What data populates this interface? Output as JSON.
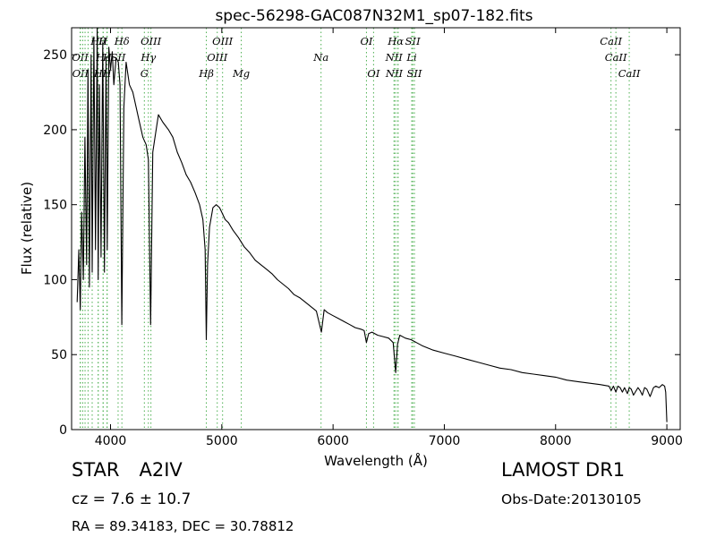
{
  "chart_data": {
    "type": "line",
    "title": "spec-56298-GAC087N32M1_sp07-182.fits",
    "xlabel": "Wavelength (Å)",
    "ylabel": "Flux (relative)",
    "xlim": [
      3650,
      9120
    ],
    "ylim": [
      0,
      268
    ],
    "xticks": [
      4000,
      5000,
      6000,
      7000,
      8000,
      9000
    ],
    "yticks": [
      0,
      50,
      100,
      150,
      200,
      250
    ],
    "grid": false,
    "series": [
      {
        "color": "#000000",
        "x": [
          3700,
          3715,
          3728,
          3740,
          3755,
          3770,
          3785,
          3797,
          3810,
          3825,
          3835,
          3850,
          3865,
          3880,
          3889,
          3900,
          3915,
          3930,
          3945,
          3960,
          3970,
          3985,
          4000,
          4015,
          4030,
          4050,
          4070,
          4085,
          4101,
          4120,
          4140,
          4170,
          4200,
          4230,
          4260,
          4290,
          4320,
          4340,
          4360,
          4380,
          4400,
          4430,
          4470,
          4520,
          4560,
          4600,
          4640,
          4680,
          4720,
          4760,
          4800,
          4830,
          4850,
          4861,
          4872,
          4890,
          4920,
          4950,
          4980,
          5000,
          5030,
          5060,
          5100,
          5150,
          5200,
          5250,
          5300,
          5350,
          5400,
          5450,
          5500,
          5550,
          5600,
          5650,
          5700,
          5750,
          5800,
          5850,
          5895,
          5920,
          5950,
          6000,
          6050,
          6100,
          6150,
          6200,
          6250,
          6280,
          6300,
          6320,
          6350,
          6400,
          6450,
          6500,
          6540,
          6563,
          6580,
          6600,
          6650,
          6700,
          6750,
          6800,
          6900,
          7000,
          7100,
          7200,
          7300,
          7400,
          7500,
          7600,
          7700,
          7800,
          7900,
          8000,
          8100,
          8200,
          8300,
          8400,
          8480,
          8500,
          8520,
          8542,
          8560,
          8580,
          8600,
          8620,
          8645,
          8662,
          8680,
          8700,
          8740,
          8760,
          8780,
          8800,
          8820,
          8850,
          8880,
          8900,
          8930,
          8960,
          8980,
          8990,
          9000
        ],
        "y": [
          85,
          120,
          80,
          145,
          100,
          195,
          110,
          240,
          95,
          250,
          105,
          262,
          120,
          268,
          100,
          230,
          115,
          258,
          105,
          248,
          120,
          255,
          240,
          252,
          230,
          248,
          245,
          230,
          70,
          215,
          245,
          230,
          225,
          215,
          205,
          195,
          190,
          180,
          70,
          185,
          195,
          210,
          205,
          200,
          195,
          185,
          178,
          170,
          165,
          158,
          150,
          140,
          120,
          60,
          110,
          135,
          148,
          150,
          148,
          145,
          140,
          138,
          133,
          128,
          122,
          118,
          113,
          110,
          107,
          104,
          100,
          97,
          94,
          90,
          88,
          85,
          82,
          79,
          65,
          80,
          78,
          76,
          74,
          72,
          70,
          68,
          67,
          66,
          58,
          64,
          65,
          63,
          62,
          61,
          58,
          38,
          57,
          63,
          61,
          60,
          58,
          56,
          53,
          51,
          49,
          47,
          45,
          43,
          41,
          40,
          38,
          37,
          36,
          35,
          33,
          32,
          31,
          30,
          29,
          26,
          29,
          25,
          29,
          28,
          25,
          28,
          24,
          28,
          27,
          23,
          28,
          26,
          23,
          28,
          27,
          22,
          28,
          29,
          28,
          30,
          29,
          25,
          5
        ]
      }
    ],
    "line_markers": [
      {
        "x": 3727,
        "row": 2,
        "label": "OII"
      },
      {
        "x": 3729,
        "row": 3,
        "label": "OII"
      },
      {
        "x": 3750,
        "row": 1,
        "label": ""
      },
      {
        "x": 3771,
        "row": 1,
        "label": ""
      },
      {
        "x": 3798,
        "row": 1,
        "label": ""
      },
      {
        "x": 3835,
        "row": 1,
        "label": ""
      },
      {
        "x": 3889,
        "row": 1,
        "label": "Hθ"
      },
      {
        "x": 3889,
        "row": 3,
        "label": "H"
      },
      {
        "x": 3933,
        "row": 1,
        "label": "H"
      },
      {
        "x": 3934,
        "row": 2,
        "label": "Hϵ"
      },
      {
        "x": 3968,
        "row": 3,
        "label": "H"
      },
      {
        "x": 3970,
        "row": 2,
        "label": "H"
      },
      {
        "x": 4068,
        "row": 2,
        "label": "SII"
      },
      {
        "x": 4102,
        "row": 1,
        "label": "Hδ"
      },
      {
        "x": 4304,
        "row": 3,
        "label": "G"
      },
      {
        "x": 4340,
        "row": 2,
        "label": "Hγ"
      },
      {
        "x": 4363,
        "row": 1,
        "label": "OIII"
      },
      {
        "x": 4861,
        "row": 3,
        "label": "Hβ"
      },
      {
        "x": 4959,
        "row": 2,
        "label": "OIII"
      },
      {
        "x": 5007,
        "row": 1,
        "label": "OIII"
      },
      {
        "x": 5175,
        "row": 3,
        "label": "Mg"
      },
      {
        "x": 5892,
        "row": 2,
        "label": "Na"
      },
      {
        "x": 6300,
        "row": 1,
        "label": "OI"
      },
      {
        "x": 6364,
        "row": 3,
        "label": "OI"
      },
      {
        "x": 6548,
        "row": 2,
        "label": "NII"
      },
      {
        "x": 6550,
        "row": 3,
        "label": "NII"
      },
      {
        "x": 6563,
        "row": 1,
        "label": "Hα"
      },
      {
        "x": 6583,
        "row": 3,
        "label": ""
      },
      {
        "x": 6584,
        "row": 2,
        "label": ""
      },
      {
        "x": 6707,
        "row": 2,
        "label": "Li"
      },
      {
        "x": 6716,
        "row": 1,
        "label": "SII"
      },
      {
        "x": 6731,
        "row": 3,
        "label": "SII"
      },
      {
        "x": 8498,
        "row": 1,
        "label": "CaII"
      },
      {
        "x": 8542,
        "row": 2,
        "label": "CaII"
      },
      {
        "x": 8662,
        "row": 3,
        "label": "CaII"
      }
    ]
  },
  "info": {
    "object_type": "STAR",
    "subclass": "A2IV",
    "redshift": "cz = 7.6 ± 10.7",
    "radec": "RA = 89.34183, DEC = 30.78812",
    "survey": "LAMOST DR1",
    "obs_date": "Obs-Date:20130105"
  },
  "colors": {
    "spectrum": "#000000",
    "line_markers": "#4caf50",
    "frame": "#000000"
  }
}
